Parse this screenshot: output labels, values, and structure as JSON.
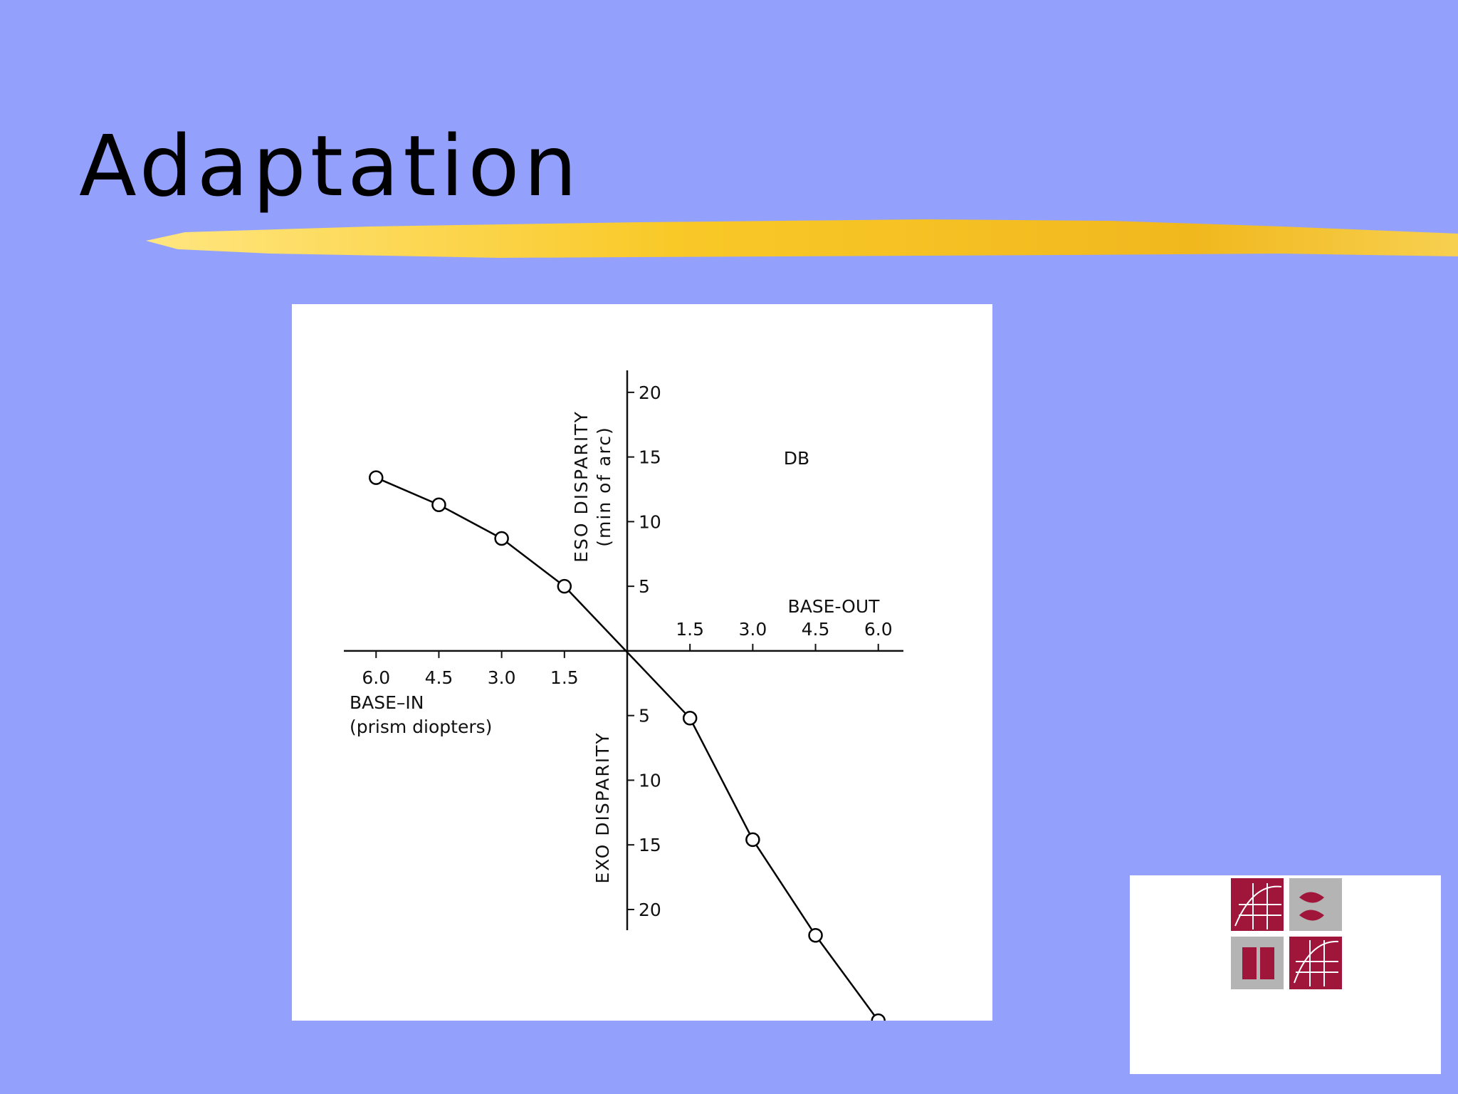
{
  "slide": {
    "title": "Adaptation"
  },
  "chart_data": {
    "type": "line",
    "annotation": "DB",
    "y_label_top": "ESO DISPARITY",
    "y_label_top_unit": "(min of arc)",
    "y_label_bottom": "EXO DISPARITY",
    "x_label_right": "BASE-OUT",
    "x_label_left": "BASE–IN",
    "x_label_left_unit": "(prism diopters)",
    "x": [
      -6.0,
      -4.5,
      -3.0,
      -1.5,
      1.5,
      3.0,
      4.5,
      6.0
    ],
    "values": [
      13.4,
      11.3,
      8.7,
      5.0,
      -5.2,
      -14.6,
      -22.0,
      -28.6
    ],
    "color": "#000000",
    "xlim": [
      -6.77,
      6.6
    ],
    "ylim": [
      -21.6,
      21.7
    ],
    "xticks": [
      {
        "value": -6.0,
        "label": "6.0"
      },
      {
        "value": -4.5,
        "label": "4.5"
      },
      {
        "value": -3.0,
        "label": "3.0"
      },
      {
        "value": -1.5,
        "label": "1.5"
      },
      1.5,
      {
        "value": 3.0,
        "label": "3.0"
      },
      4.5,
      {
        "value": 6.0,
        "label": "6.0"
      }
    ],
    "yticks": [
      20,
      15,
      10,
      5,
      {
        "value": -5,
        "label": "5"
      },
      {
        "value": -10,
        "label": "10"
      },
      {
        "value": -15,
        "label": "15"
      },
      {
        "value": -20,
        "label": "20"
      }
    ],
    "grid": false
  }
}
